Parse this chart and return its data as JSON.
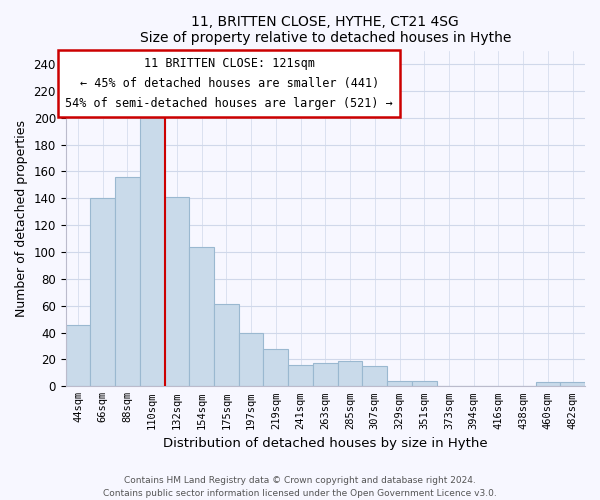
{
  "title": "11, BRITTEN CLOSE, HYTHE, CT21 4SG",
  "subtitle": "Size of property relative to detached houses in Hythe",
  "xlabel": "Distribution of detached houses by size in Hythe",
  "ylabel": "Number of detached properties",
  "bar_labels": [
    "44sqm",
    "66sqm",
    "88sqm",
    "110sqm",
    "132sqm",
    "154sqm",
    "175sqm",
    "197sqm",
    "219sqm",
    "241sqm",
    "263sqm",
    "285sqm",
    "307sqm",
    "329sqm",
    "351sqm",
    "373sqm",
    "394sqm",
    "416sqm",
    "438sqm",
    "460sqm",
    "482sqm"
  ],
  "bar_values": [
    46,
    140,
    156,
    200,
    141,
    104,
    61,
    40,
    28,
    16,
    17,
    19,
    15,
    4,
    4,
    0,
    0,
    0,
    0,
    3,
    3
  ],
  "bar_color": "#c9daea",
  "bar_edge_color": "#9ab8d0",
  "highlight_line_index": 4,
  "highlight_color": "#cc0000",
  "annotation_line1": "11 BRITTEN CLOSE: 121sqm",
  "annotation_line2": "← 45% of detached houses are smaller (441)",
  "annotation_line3": "54% of semi-detached houses are larger (521) →",
  "ylim": [
    0,
    250
  ],
  "yticks": [
    0,
    20,
    40,
    60,
    80,
    100,
    120,
    140,
    160,
    180,
    200,
    220,
    240
  ],
  "footer_text": "Contains HM Land Registry data © Crown copyright and database right 2024.\nContains public sector information licensed under the Open Government Licence v3.0.",
  "bg_color": "#f7f7ff",
  "grid_color": "#d0d8ea"
}
